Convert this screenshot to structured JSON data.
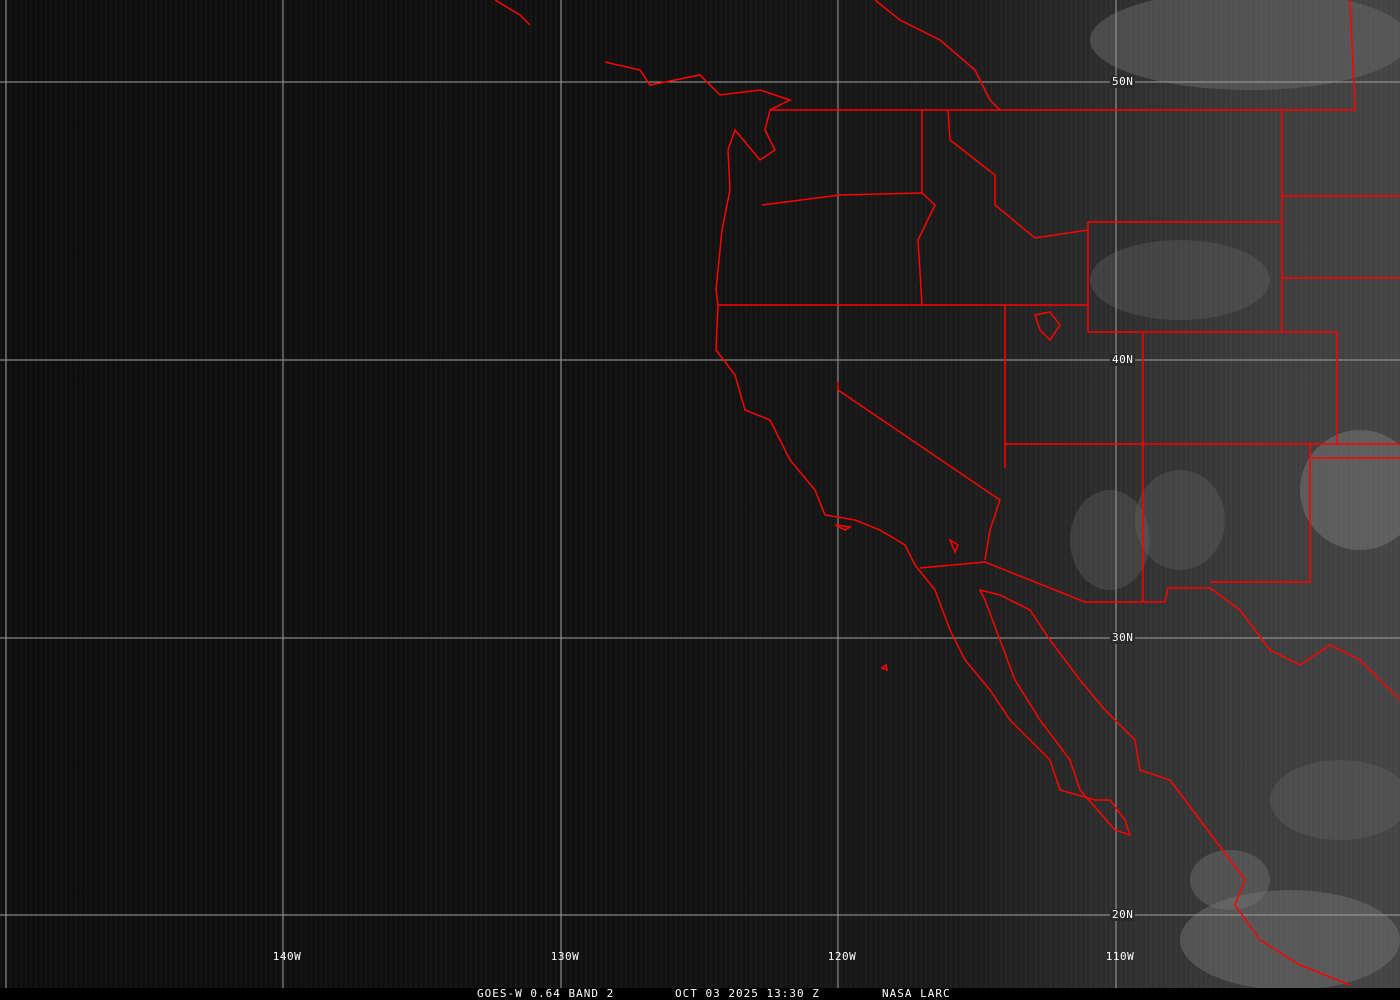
{
  "image": {
    "product": "GOES-W 0.64 BAND 2",
    "datetime": "OCT 03 2025 13:30 Z",
    "source": "NASA LARC"
  },
  "grid": {
    "latitude_labels": [
      "50N",
      "40N",
      "30N",
      "20N"
    ],
    "longitude_labels": [
      "140W",
      "130W",
      "120W",
      "110W"
    ],
    "grid_color": "#a0a0a0"
  },
  "map": {
    "boundary_color": "#ff0000",
    "region": "US West Coast and Baja California"
  }
}
